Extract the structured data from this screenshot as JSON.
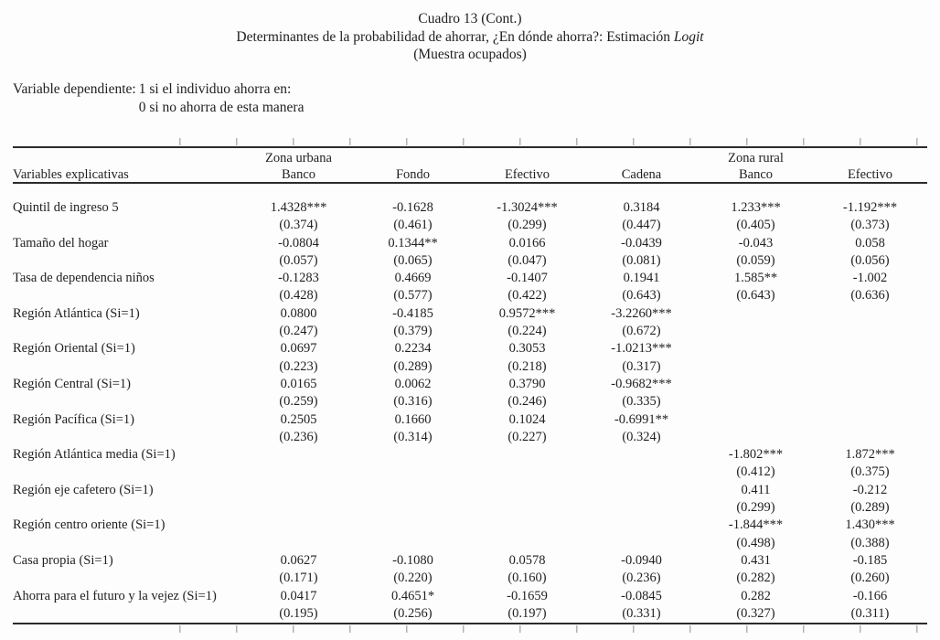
{
  "header": {
    "line1": "Cuadro 13 (Cont.)",
    "line2_text": "Determinantes de la probabilidad de ahorrar, ¿En dónde ahorra?: Estimación ",
    "line2_italic": "Logit",
    "line3": "(Muestra ocupados)"
  },
  "dep_var": {
    "label": "Variable dependiente:",
    "line1": "1 si el individuo ahorra en:",
    "line2": "0 si no ahorra de esta manera"
  },
  "table": {
    "stub_header": "Variables explicativas",
    "zone_headers": [
      "Zona urbana",
      "Zona rural"
    ],
    "columns": [
      "Banco",
      "Fondo",
      "Efectivo",
      "Cadena",
      "Banco",
      "Efectivo"
    ],
    "rows": [
      {
        "label": "Quintil de ingreso 5",
        "coefs": [
          "1.4328***",
          "-0.1628",
          "-1.3024***",
          "0.3184",
          "1.233***",
          "-1.192***"
        ],
        "ses": [
          "(0.374)",
          "(0.461)",
          "(0.299)",
          "(0.447)",
          "(0.405)",
          "(0.373)"
        ]
      },
      {
        "label": "Tamaño del hogar",
        "coefs": [
          "-0.0804",
          "0.1344**",
          "0.0166",
          "-0.0439",
          "-0.043",
          "0.058"
        ],
        "ses": [
          "(0.057)",
          "(0.065)",
          "(0.047)",
          "(0.081)",
          "(0.059)",
          "(0.056)"
        ]
      },
      {
        "label": "Tasa de dependencia niños",
        "coefs": [
          "-0.1283",
          "0.4669",
          "-0.1407",
          "0.1941",
          "1.585**",
          "-1.002"
        ],
        "ses": [
          "(0.428)",
          "(0.577)",
          "(0.422)",
          "(0.643)",
          "(0.643)",
          "(0.636)"
        ]
      },
      {
        "label": "Región Atlántica (Si=1)",
        "coefs": [
          "0.0800",
          "-0.4185",
          "0.9572***",
          "-3.2260***",
          "",
          ""
        ],
        "ses": [
          "(0.247)",
          "(0.379)",
          "(0.224)",
          "(0.672)",
          "",
          ""
        ]
      },
      {
        "label": "Región Oriental (Si=1)",
        "coefs": [
          "0.0697",
          "0.2234",
          "0.3053",
          "-1.0213***",
          "",
          ""
        ],
        "ses": [
          "(0.223)",
          "(0.289)",
          "(0.218)",
          "(0.317)",
          "",
          ""
        ]
      },
      {
        "label": "Región Central (Si=1)",
        "coefs": [
          "0.0165",
          "0.0062",
          "0.3790",
          "-0.9682***",
          "",
          ""
        ],
        "ses": [
          "(0.259)",
          "(0.316)",
          "(0.246)",
          "(0.335)",
          "",
          ""
        ]
      },
      {
        "label": "Región Pacífica (Si=1)",
        "coefs": [
          "0.2505",
          "0.1660",
          "0.1024",
          "-0.6991**",
          "",
          ""
        ],
        "ses": [
          "(0.236)",
          "(0.314)",
          "(0.227)",
          "(0.324)",
          "",
          ""
        ]
      },
      {
        "label": "Región Atlántica media (Si=1)",
        "coefs": [
          "",
          "",
          "",
          "",
          "-1.802***",
          "1.872***"
        ],
        "ses": [
          "",
          "",
          "",
          "",
          "(0.412)",
          "(0.375)"
        ]
      },
      {
        "label": "Región eje cafetero (Si=1)",
        "coefs": [
          "",
          "",
          "",
          "",
          "0.411",
          "-0.212"
        ],
        "ses": [
          "",
          "",
          "",
          "",
          "(0.299)",
          "(0.289)"
        ]
      },
      {
        "label": "Región centro oriente (Si=1)",
        "coefs": [
          "",
          "",
          "",
          "",
          "-1.844***",
          "1.430***"
        ],
        "ses": [
          "",
          "",
          "",
          "",
          "(0.498)",
          "(0.388)"
        ]
      },
      {
        "label": "Casa propia (Si=1)",
        "coefs": [
          "0.0627",
          "-0.1080",
          "0.0578",
          "-0.0940",
          "0.431",
          "-0.185"
        ],
        "ses": [
          "(0.171)",
          "(0.220)",
          "(0.160)",
          "(0.236)",
          "(0.282)",
          "(0.260)"
        ]
      },
      {
        "label": "Ahorra para el futuro y la vejez (Si=1)",
        "coefs": [
          "0.0417",
          "0.4651*",
          "-0.1659",
          "-0.0845",
          "0.282",
          "-0.166"
        ],
        "ses": [
          "(0.195)",
          "(0.256)",
          "(0.197)",
          "(0.331)",
          "(0.327)",
          "(0.311)"
        ]
      }
    ]
  },
  "style": {
    "text_color": "#1f1f1f",
    "rule_color": "#2b2b2b",
    "background": "#fdfdfd"
  }
}
